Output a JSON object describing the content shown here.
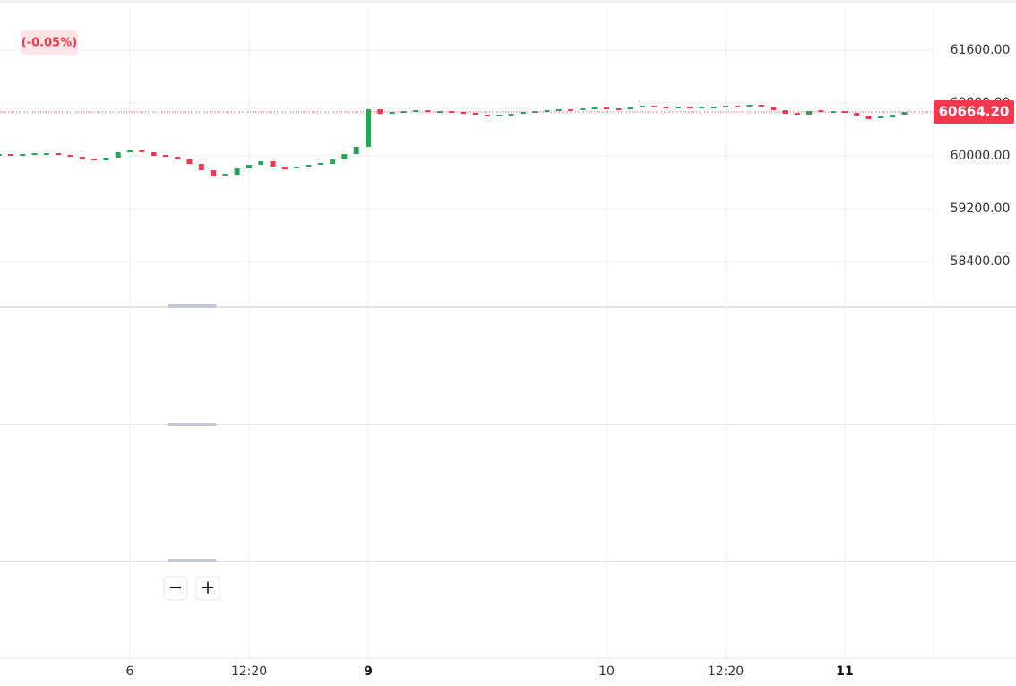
{
  "chart_data": {
    "type": "candlestick",
    "change": "(-0.05%)",
    "last_price": {
      "value": 60664.2,
      "label": "60664.20"
    },
    "up_color": "#26a65b",
    "down_color": "#f0394f",
    "categories": [
      null,
      null,
      null,
      null,
      null,
      null,
      null,
      null,
      null,
      null,
      null,
      "6",
      null,
      null,
      null,
      null,
      null,
      null,
      null,
      null,
      null,
      "12:20",
      null,
      null,
      null,
      null,
      null,
      null,
      null,
      null,
      null,
      "9",
      null,
      null,
      null,
      null,
      null,
      null,
      null,
      null,
      null,
      null,
      null,
      null,
      null,
      null,
      null,
      null,
      null,
      null,
      null,
      "10",
      null,
      null,
      null,
      null,
      null,
      null,
      null,
      null,
      null,
      "12:20",
      null,
      null,
      null,
      null,
      null,
      null,
      null,
      null,
      null,
      "11",
      null,
      null,
      null,
      null,
      null
    ],
    "bold_categories": [
      "9",
      "11"
    ],
    "values": [
      60014,
      60000,
      60014,
      60027,
      60027,
      60014,
      59986,
      59946,
      59932,
      59973,
      60054,
      60068,
      60054,
      60000,
      59986,
      59946,
      59878,
      59783,
      59688,
      59715,
      59810,
      59864,
      59919,
      59837,
      59797,
      59824,
      59851,
      59878,
      59946,
      60027,
      60136,
      60705,
      60637,
      60651,
      60664,
      60678,
      60664,
      60664,
      60651,
      60637,
      60610,
      60583,
      60610,
      60624,
      60651,
      60664,
      60678,
      60691,
      60678,
      60705,
      60718,
      60705,
      60691,
      60718,
      60745,
      60732,
      60718,
      60732,
      60718,
      60732,
      60732,
      60745,
      60732,
      60759,
      60732,
      60691,
      60637,
      60624,
      60678,
      60664,
      60664,
      60651,
      60610,
      60556,
      60583,
      60624,
      60664
    ],
    "ylim": [
      57709,
      62251
    ],
    "yticks": [
      {
        "value": 61600,
        "label": "61600.00"
      },
      {
        "value": 60800,
        "label": "60800.00"
      },
      {
        "value": 60000,
        "label": "60000.00"
      },
      {
        "value": 59200,
        "label": "59200.00"
      },
      {
        "value": 58400,
        "label": "58400.00"
      }
    ],
    "grid": true,
    "zoom_out": "−",
    "zoom_in": "+"
  }
}
